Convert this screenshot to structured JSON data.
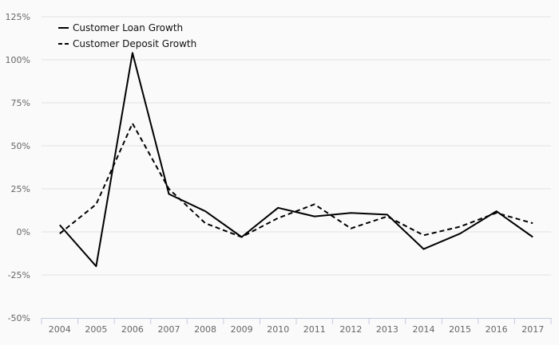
{
  "chart_data": {
    "type": "line",
    "title": "",
    "xlabel": "",
    "ylabel": "",
    "x": [
      "2004",
      "2005",
      "2006",
      "2007",
      "2008",
      "2009",
      "2010",
      "2011",
      "2012",
      "2013",
      "2014",
      "2015",
      "2016",
      "2017"
    ],
    "ylim": [
      -50,
      125
    ],
    "yticks": [
      -50,
      -25,
      0,
      25,
      50,
      75,
      100,
      125
    ],
    "ytick_labels": [
      "-50%",
      "-25%",
      "0%",
      "25%",
      "50%",
      "75%",
      "100%",
      "125%"
    ],
    "grid": true,
    "legend_position": "top-left",
    "series": [
      {
        "name": "Customer Loan Growth",
        "style": "solid",
        "color": "#000000",
        "values": [
          4,
          -20,
          104,
          22,
          12,
          -3,
          14,
          9,
          11,
          10,
          -10,
          -1,
          12,
          -3
        ]
      },
      {
        "name": "Customer Deposit Growth",
        "style": "dashed",
        "color": "#000000",
        "values": [
          -1,
          16,
          63,
          25,
          5,
          -3,
          8,
          16,
          2,
          9,
          -2,
          3,
          11,
          5
        ]
      }
    ]
  }
}
